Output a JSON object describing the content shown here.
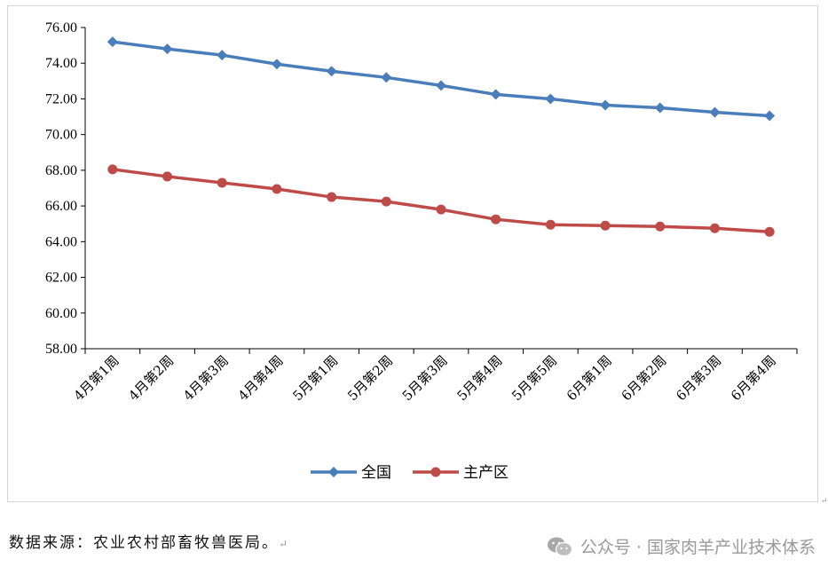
{
  "chart_data": {
    "type": "line",
    "categories": [
      "4月第1周",
      "4月第2周",
      "4月第3周",
      "4月第4周",
      "5月第1周",
      "5月第2周",
      "5月第3周",
      "5月第4周",
      "5月第5周",
      "6月第1周",
      "6月第2周",
      "6月第3周",
      "6月第4周"
    ],
    "series": [
      {
        "name": "全国",
        "color": "#4a7ebb",
        "marker": "diamond",
        "values": [
          75.2,
          74.8,
          74.45,
          73.95,
          73.55,
          73.2,
          72.75,
          72.25,
          72.0,
          71.65,
          71.5,
          71.25,
          71.05
        ]
      },
      {
        "name": "主产区",
        "color": "#be4b48",
        "marker": "circle",
        "values": [
          68.05,
          67.65,
          67.3,
          66.95,
          66.5,
          66.25,
          65.8,
          65.25,
          64.95,
          64.9,
          64.85,
          64.75,
          64.55
        ]
      }
    ],
    "ylim": [
      58,
      76
    ],
    "yticks": [
      "58.00",
      "60.00",
      "62.00",
      "64.00",
      "66.00",
      "68.00",
      "70.00",
      "72.00",
      "74.00",
      "76.00"
    ],
    "title": "",
    "xlabel": "",
    "ylabel": "",
    "grid": false,
    "legend": "bottom"
  },
  "source_note": "数据来源：农业农村部畜牧兽医局。",
  "return_mark": "↵",
  "watermark": "公众号 · 国家肉羊产业技术体系",
  "edge_mark": "↵"
}
